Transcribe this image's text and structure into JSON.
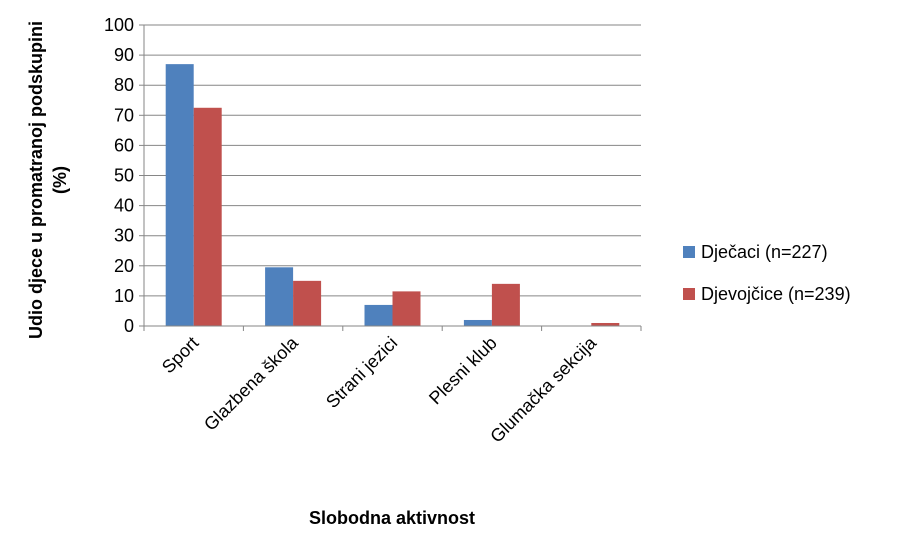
{
  "chart_data": {
    "type": "bar",
    "title": "",
    "xlabel": "Slobodna aktivnost",
    "ylabel_line1": "Udio djece u promatranoj podskupini",
    "ylabel_line2": "(%)",
    "ylim": [
      0,
      100
    ],
    "yticks": [
      0,
      10,
      20,
      30,
      40,
      50,
      60,
      70,
      80,
      90,
      100
    ],
    "grid": true,
    "legend_position": "right",
    "categories": [
      "Sport",
      "Glazbena škola",
      "Strani jezici",
      "Plesni klub",
      "Glumačka sekcija"
    ],
    "series": [
      {
        "name": "Dječaci (n=227)",
        "color": "#4F81BD",
        "values": [
          87,
          19.5,
          7,
          2,
          0
        ]
      },
      {
        "name": "Djevojčice (n=239)",
        "color": "#C0504D",
        "values": [
          72.5,
          15,
          11.5,
          14,
          1
        ]
      }
    ]
  }
}
